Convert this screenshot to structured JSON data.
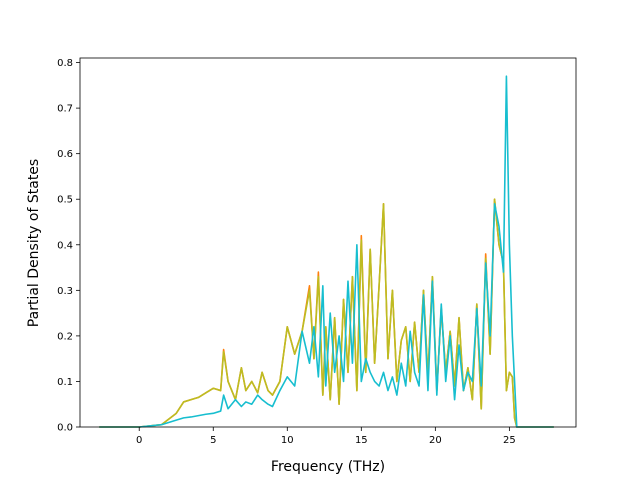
{
  "chart_data": {
    "type": "line",
    "xlabel": "Frequency (THz)",
    "ylabel": "Partial Density of States",
    "xlim": [
      -4.0,
      29.5
    ],
    "ylim": [
      0.0,
      0.81
    ],
    "x_ticks": [
      0,
      5,
      10,
      15,
      20,
      25
    ],
    "y_ticks": [
      0.0,
      0.1,
      0.2,
      0.3,
      0.4,
      0.5,
      0.6,
      0.7,
      0.8
    ],
    "x_tick_labels": [
      "0",
      "5",
      "10",
      "15",
      "20",
      "25"
    ],
    "y_tick_labels": [
      "0.0",
      "0.1",
      "0.2",
      "0.3",
      "0.4",
      "0.5",
      "0.6",
      "0.7",
      "0.8"
    ],
    "grid": false,
    "series": [
      {
        "color": "#ff7f0e",
        "x": [
          -2.7,
          0,
          1.5,
          2.5,
          3.0,
          3.5,
          4.0,
          4.5,
          5.0,
          5.5,
          5.7,
          6.0,
          6.5,
          6.9,
          7.2,
          7.6,
          8.0,
          8.3,
          8.7,
          9.0,
          9.5,
          10.0,
          10.5,
          11.0,
          11.5,
          11.8,
          12.1,
          12.4,
          12.6,
          12.9,
          13.2,
          13.5,
          13.8,
          14.1,
          14.4,
          14.7,
          15.0,
          15.3,
          15.6,
          15.9,
          16.2,
          16.5,
          16.8,
          17.1,
          17.4,
          17.7,
          18.0,
          18.3,
          18.6,
          18.9,
          19.2,
          19.5,
          19.8,
          20.1,
          20.4,
          20.7,
          21.0,
          21.3,
          21.6,
          21.9,
          22.2,
          22.5,
          22.8,
          23.1,
          23.4,
          23.7,
          24.0,
          24.3,
          24.6,
          24.8,
          25.0,
          25.2,
          25.35,
          25.5,
          25.8,
          26.5,
          28.0
        ],
        "y": [
          0.0,
          0.0,
          0.005,
          0.03,
          0.055,
          0.06,
          0.065,
          0.075,
          0.085,
          0.08,
          0.17,
          0.1,
          0.06,
          0.13,
          0.08,
          0.1,
          0.075,
          0.12,
          0.08,
          0.07,
          0.1,
          0.22,
          0.16,
          0.21,
          0.31,
          0.15,
          0.34,
          0.07,
          0.22,
          0.06,
          0.24,
          0.05,
          0.28,
          0.12,
          0.33,
          0.08,
          0.42,
          0.12,
          0.39,
          0.14,
          0.31,
          0.49,
          0.15,
          0.3,
          0.1,
          0.19,
          0.22,
          0.1,
          0.23,
          0.12,
          0.3,
          0.11,
          0.33,
          0.08,
          0.26,
          0.12,
          0.21,
          0.09,
          0.24,
          0.08,
          0.13,
          0.06,
          0.27,
          0.04,
          0.38,
          0.16,
          0.5,
          0.4,
          0.36,
          0.08,
          0.12,
          0.11,
          0.02,
          0.0,
          0.0,
          0.0,
          0.0
        ]
      },
      {
        "color": "#bcbd22",
        "x": [
          -2.7,
          0,
          1.5,
          2.5,
          3.0,
          3.5,
          4.0,
          4.5,
          5.0,
          5.5,
          5.7,
          6.0,
          6.5,
          6.9,
          7.2,
          7.6,
          8.0,
          8.3,
          8.7,
          9.0,
          9.5,
          10.0,
          10.5,
          11.0,
          11.5,
          11.8,
          12.1,
          12.4,
          12.6,
          12.9,
          13.2,
          13.5,
          13.8,
          14.1,
          14.4,
          14.7,
          15.0,
          15.3,
          15.6,
          15.9,
          16.2,
          16.5,
          16.8,
          17.1,
          17.4,
          17.7,
          18.0,
          18.3,
          18.6,
          18.9,
          19.2,
          19.5,
          19.8,
          20.1,
          20.4,
          20.7,
          21.0,
          21.3,
          21.6,
          21.9,
          22.2,
          22.5,
          22.8,
          23.1,
          23.4,
          23.7,
          24.0,
          24.3,
          24.6,
          24.8,
          25.0,
          25.2,
          25.35,
          25.5,
          25.8,
          26.5,
          28.0
        ],
        "y": [
          0.0,
          0.0,
          0.005,
          0.03,
          0.055,
          0.06,
          0.065,
          0.075,
          0.085,
          0.08,
          0.165,
          0.1,
          0.06,
          0.13,
          0.08,
          0.1,
          0.075,
          0.12,
          0.08,
          0.07,
          0.1,
          0.22,
          0.16,
          0.21,
          0.3,
          0.15,
          0.33,
          0.07,
          0.22,
          0.06,
          0.24,
          0.05,
          0.28,
          0.12,
          0.33,
          0.08,
          0.41,
          0.12,
          0.39,
          0.14,
          0.31,
          0.49,
          0.15,
          0.3,
          0.1,
          0.19,
          0.22,
          0.1,
          0.23,
          0.12,
          0.3,
          0.11,
          0.33,
          0.08,
          0.26,
          0.12,
          0.21,
          0.09,
          0.24,
          0.08,
          0.13,
          0.06,
          0.27,
          0.04,
          0.37,
          0.16,
          0.5,
          0.4,
          0.36,
          0.08,
          0.12,
          0.11,
          0.02,
          0.0,
          0.0,
          0.0,
          0.0
        ]
      },
      {
        "color": "#17becf",
        "x": [
          -2.7,
          0,
          1.5,
          2.5,
          3.0,
          3.5,
          4.0,
          4.5,
          5.0,
          5.5,
          5.7,
          6.0,
          6.5,
          6.9,
          7.2,
          7.6,
          8.0,
          8.3,
          8.7,
          9.0,
          9.5,
          10.0,
          10.5,
          11.0,
          11.5,
          11.8,
          12.1,
          12.4,
          12.6,
          12.9,
          13.2,
          13.5,
          13.8,
          14.1,
          14.4,
          14.7,
          15.0,
          15.3,
          15.6,
          15.9,
          16.2,
          16.5,
          16.8,
          17.1,
          17.4,
          17.7,
          18.0,
          18.3,
          18.6,
          18.9,
          19.2,
          19.5,
          19.8,
          20.1,
          20.4,
          20.7,
          21.0,
          21.3,
          21.6,
          21.9,
          22.2,
          22.5,
          22.8,
          23.1,
          23.4,
          23.7,
          24.0,
          24.3,
          24.6,
          24.8,
          25.0,
          25.2,
          25.35,
          25.5,
          25.8,
          26.5,
          28.0
        ],
        "y": [
          0.0,
          0.0,
          0.005,
          0.015,
          0.02,
          0.022,
          0.025,
          0.028,
          0.03,
          0.035,
          0.07,
          0.04,
          0.06,
          0.045,
          0.055,
          0.05,
          0.07,
          0.06,
          0.05,
          0.045,
          0.08,
          0.11,
          0.09,
          0.21,
          0.14,
          0.22,
          0.11,
          0.31,
          0.09,
          0.25,
          0.12,
          0.2,
          0.1,
          0.32,
          0.14,
          0.4,
          0.1,
          0.15,
          0.12,
          0.1,
          0.09,
          0.12,
          0.08,
          0.11,
          0.07,
          0.14,
          0.09,
          0.21,
          0.12,
          0.09,
          0.29,
          0.08,
          0.32,
          0.07,
          0.27,
          0.1,
          0.2,
          0.06,
          0.18,
          0.08,
          0.12,
          0.1,
          0.26,
          0.09,
          0.36,
          0.2,
          0.49,
          0.44,
          0.34,
          0.77,
          0.4,
          0.2,
          0.1,
          0.0,
          0.0,
          0.0,
          0.0
        ]
      }
    ]
  }
}
